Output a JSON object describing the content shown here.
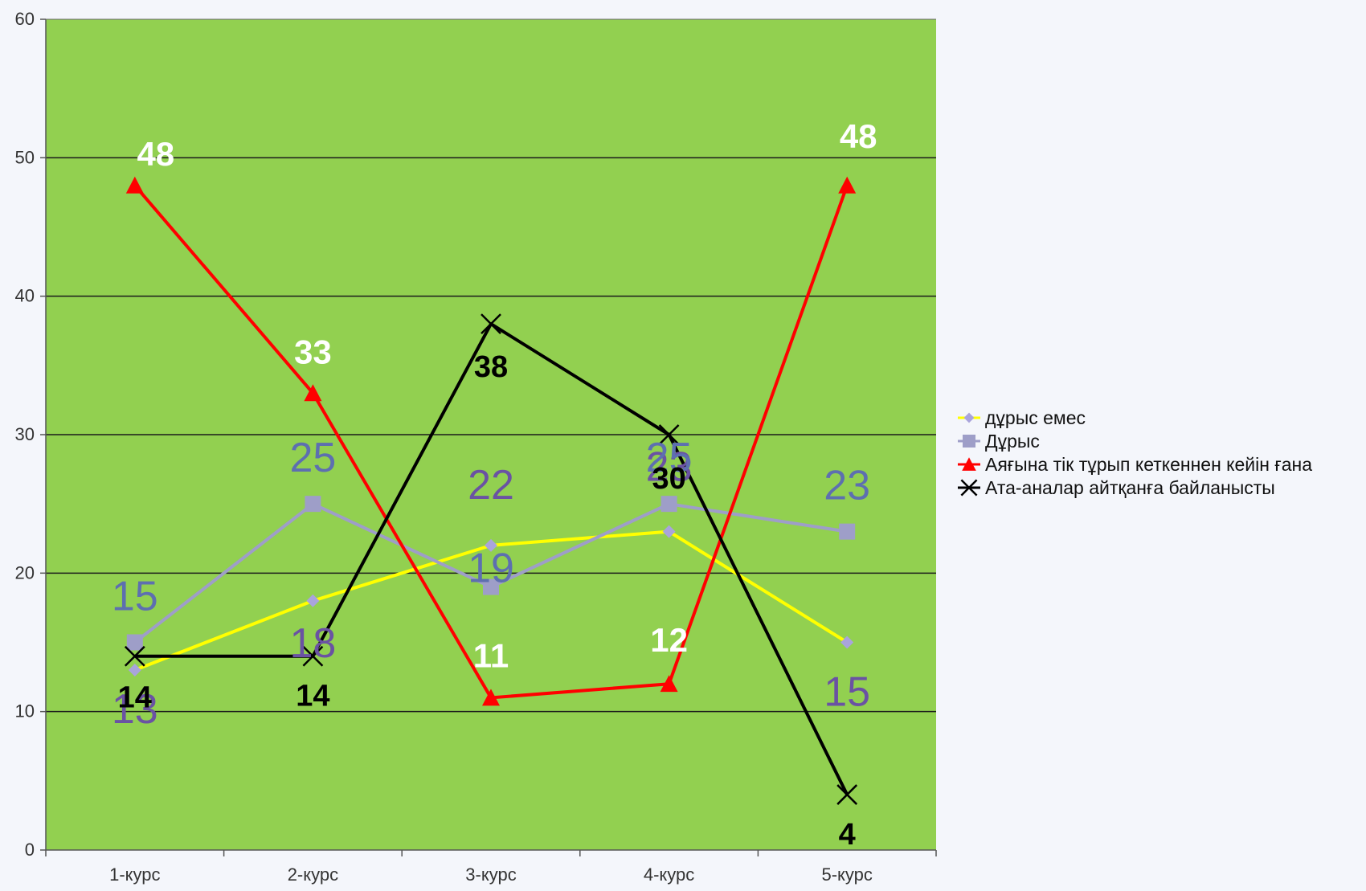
{
  "chart_data": {
    "type": "line",
    "categories": [
      "1-курс",
      "2-курс",
      "3-курс",
      "4-курс",
      "5-курс"
    ],
    "ylim": [
      0,
      60
    ],
    "yticks": [
      0,
      10,
      20,
      30,
      40,
      50,
      60
    ],
    "grid": true,
    "legend_position": "right",
    "plot_background": "#92d050",
    "series": [
      {
        "name": "дұрыс емес",
        "values": [
          13,
          18,
          22,
          23,
          15
        ],
        "color": "#ffff00",
        "marker": "diamond",
        "marker_color": "#a9a4dc",
        "label_color": "#6a52a3"
      },
      {
        "name": "Дұрыс",
        "values": [
          15,
          25,
          19,
          25,
          23
        ],
        "color": "#9e9ec8",
        "marker": "square",
        "marker_color": "#9e9ec8",
        "label_color": "#5d6fb0"
      },
      {
        "name": "Аяғына тік тұрып кеткеннен кейін ғана",
        "values": [
          48,
          33,
          11,
          12,
          48
        ],
        "color": "#ff0000",
        "marker": "triangle",
        "marker_color": "#ff0000",
        "label_color": "#ffffff"
      },
      {
        "name": "Ата-аналар айтқанға байланысты",
        "values": [
          14,
          14,
          38,
          30,
          4
        ],
        "color": "#000000",
        "marker": "x",
        "marker_color": "#000000",
        "label_color": "#000000"
      }
    ]
  }
}
